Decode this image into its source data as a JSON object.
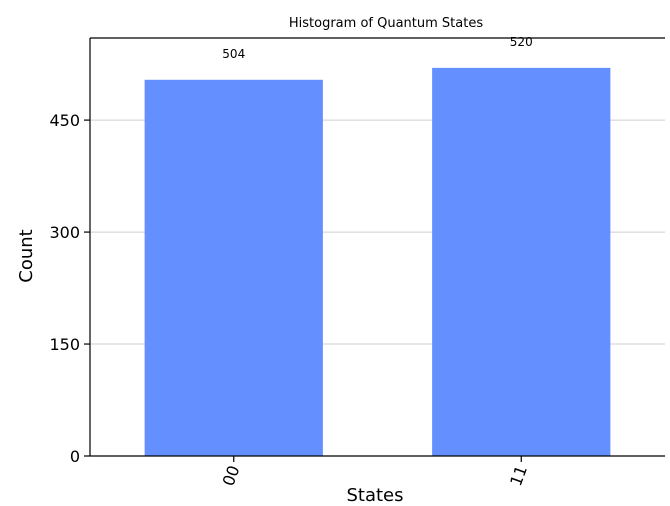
{
  "chart_data": {
    "type": "bar",
    "title": "Histogram of Quantum States",
    "xlabel": "States",
    "ylabel": "Count",
    "categories": [
      "00",
      "11"
    ],
    "values": [
      504,
      520
    ],
    "data_labels": [
      "504",
      "520"
    ],
    "yticks": [
      0,
      150,
      300,
      450
    ],
    "ylim": [
      0,
      560
    ],
    "grid": "horizontal",
    "bar_color": "#648fff"
  }
}
